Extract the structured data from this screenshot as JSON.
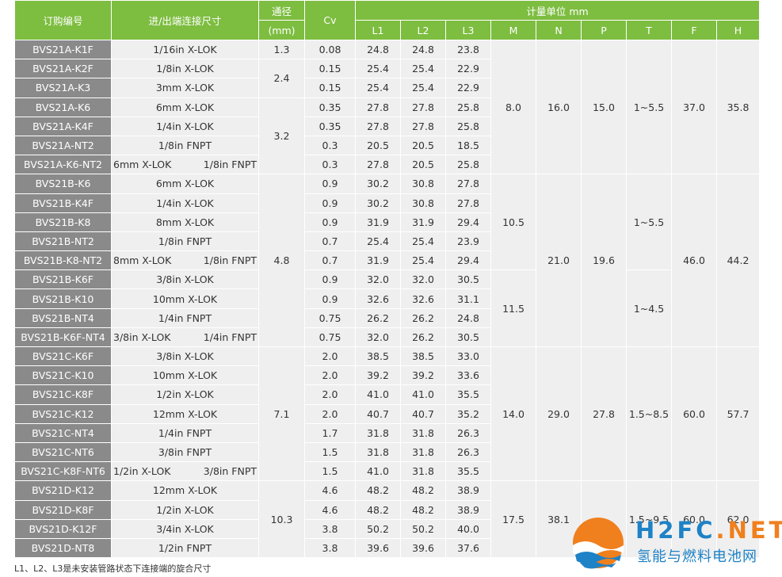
{
  "header": {
    "order_no": "订购编号",
    "conn_size": "进/出端连接尺寸",
    "bore": "通径",
    "bore_unit": "(mm)",
    "cv": "Cv",
    "dims": "计量单位 mm",
    "cols": [
      "L1",
      "L2",
      "L3",
      "M",
      "N",
      "P",
      "T",
      "F",
      "H"
    ]
  },
  "rows": [
    {
      "code": "BVS21A-K1F",
      "conn": "1/16in X-LOK",
      "cv": "0.08",
      "l1": "24.8",
      "l2": "24.8",
      "l3": "23.8"
    },
    {
      "code": "BVS21A-K2F",
      "conn": "1/8in X-LOK",
      "cv": "0.15",
      "l1": "25.4",
      "l2": "25.4",
      "l3": "22.9"
    },
    {
      "code": "BVS21A-K3",
      "conn": "3mm X-LOK",
      "cv": "0.15",
      "l1": "25.4",
      "l2": "25.4",
      "l3": "22.9"
    },
    {
      "code": "BVS21A-K6",
      "conn": "6mm X-LOK",
      "cv": "0.35",
      "l1": "27.8",
      "l2": "27.8",
      "l3": "25.8"
    },
    {
      "code": "BVS21A-K4F",
      "conn": "1/4in X-LOK",
      "cv": "0.35",
      "l1": "27.8",
      "l2": "27.8",
      "l3": "25.8"
    },
    {
      "code": "BVS21A-NT2",
      "conn": "1/8in FNPT",
      "cv": "0.3",
      "l1": "20.5",
      "l2": "20.5",
      "l3": "18.5"
    },
    {
      "code": "BVS21A-K6-NT2",
      "conn_a": "6mm X-LOK",
      "conn_b": "1/8in FNPT",
      "cv": "0.3",
      "l1": "27.8",
      "l2": "20.5",
      "l3": "25.8"
    },
    {
      "code": "BVS21B-K6",
      "conn": "6mm X-LOK",
      "cv": "0.9",
      "l1": "30.2",
      "l2": "30.8",
      "l3": "27.8"
    },
    {
      "code": "BVS21B-K4F",
      "conn": "1/4in X-LOK",
      "cv": "0.9",
      "l1": "30.2",
      "l2": "30.8",
      "l3": "27.8"
    },
    {
      "code": "BVS21B-K8",
      "conn": "8mm X-LOK",
      "cv": "0.9",
      "l1": "31.9",
      "l2": "31.9",
      "l3": "29.4"
    },
    {
      "code": "BVS21B-NT2",
      "conn": "1/8in FNPT",
      "cv": "0.7",
      "l1": "25.4",
      "l2": "25.4",
      "l3": "23.9"
    },
    {
      "code": "BVS21B-K8-NT2",
      "conn_a": "8mm X-LOK",
      "conn_b": "1/8in FNPT",
      "cv": "0.7",
      "l1": "31.9",
      "l2": "25.4",
      "l3": "29.4"
    },
    {
      "code": "BVS21B-K6F",
      "conn": "3/8in X-LOK",
      "cv": "0.9",
      "l1": "32.0",
      "l2": "32.0",
      "l3": "30.5"
    },
    {
      "code": "BVS21B-K10",
      "conn": "10mm X-LOK",
      "cv": "0.9",
      "l1": "32.6",
      "l2": "32.6",
      "l3": "31.1"
    },
    {
      "code": "BVS21B-NT4",
      "conn": "1/4in FNPT",
      "cv": "0.75",
      "l1": "26.2",
      "l2": "26.2",
      "l3": "24.8"
    },
    {
      "code": "BVS21B-K6F-NT4",
      "conn_a": "3/8in X-LOK",
      "conn_b": "1/4in FNPT",
      "cv": "0.75",
      "l1": "32.0",
      "l2": "26.2",
      "l3": "30.5"
    },
    {
      "code": "BVS21C-K6F",
      "conn": "3/8in X-LOK",
      "cv": "2.0",
      "l1": "38.5",
      "l2": "38.5",
      "l3": "33.0"
    },
    {
      "code": "BVS21C-K10",
      "conn": "10mm X-LOK",
      "cv": "2.0",
      "l1": "39.2",
      "l2": "39.2",
      "l3": "33.6"
    },
    {
      "code": "BVS21C-K8F",
      "conn": "1/2in X-LOK",
      "cv": "2.0",
      "l1": "41.0",
      "l2": "41.0",
      "l3": "35.5"
    },
    {
      "code": "BVS21C-K12",
      "conn": "12mm X-LOK",
      "cv": "2.0",
      "l1": "40.7",
      "l2": "40.7",
      "l3": "35.2"
    },
    {
      "code": "BVS21C-NT4",
      "conn": "1/4in FNPT",
      "cv": "1.7",
      "l1": "31.8",
      "l2": "31.8",
      "l3": "26.3"
    },
    {
      "code": "BVS21C-NT6",
      "conn": "3/8in FNPT",
      "cv": "1.5",
      "l1": "31.8",
      "l2": "31.8",
      "l3": "26.3"
    },
    {
      "code": "BVS21C-K8F-NT6",
      "conn_a": "1/2in X-LOK",
      "conn_b": "3/8in FNPT",
      "cv": "1.5",
      "l1": "41.0",
      "l2": "31.8",
      "l3": "35.5"
    },
    {
      "code": "BVS21D-K12",
      "conn": "12mm X-LOK",
      "cv": "4.6",
      "l1": "48.2",
      "l2": "48.2",
      "l3": "38.9"
    },
    {
      "code": "BVS21D-K8F",
      "conn": "1/2in X-LOK",
      "cv": "4.6",
      "l1": "48.2",
      "l2": "48.2",
      "l3": "38.9"
    },
    {
      "code": "BVS21D-K12F",
      "conn": "3/4in X-LOK",
      "cv": "3.8",
      "l1": "50.2",
      "l2": "50.2",
      "l3": "40.0"
    },
    {
      "code": "BVS21D-NT8",
      "conn": "1/2in FNPT",
      "cv": "3.8",
      "l1": "39.6",
      "l2": "39.6",
      "l3": "37.6"
    }
  ],
  "merged": {
    "bore": [
      "1.3",
      "2.4",
      "3.2",
      "4.8",
      "7.1",
      "10.3"
    ],
    "m": [
      "8.0",
      "10.5",
      "11.5",
      "14.0",
      "17.5"
    ],
    "n": [
      "16.0",
      "21.0",
      "29.0",
      "38.1"
    ],
    "p": [
      "15.0",
      "19.6",
      "27.8"
    ],
    "t": [
      "1~5.5",
      "1~5.5",
      "1~4.5",
      "1.5~8.5",
      "1.5~9.5"
    ],
    "f": [
      "37.0",
      "46.0",
      "60.0",
      "60.0"
    ],
    "h": [
      "35.8",
      "44.2",
      "57.7",
      "62.0"
    ]
  },
  "note": "L1、L2、L3是未安装管路状态下连接端的旋合尺寸",
  "watermark": {
    "name_a": "H2FC",
    "name_b": ".NET",
    "cn": "氢能与燃料电池网",
    "colors": {
      "blue": "#1e82c6",
      "orange": "#f07f1d"
    }
  },
  "colors": {
    "header_green": "#7dbd40",
    "code_gray": "#8a8a8a",
    "cell_bg": "#efefef"
  }
}
